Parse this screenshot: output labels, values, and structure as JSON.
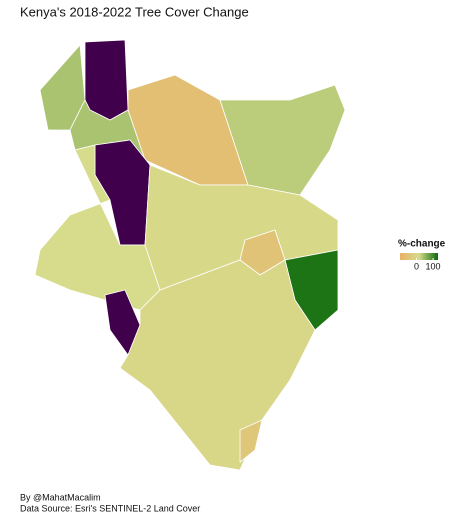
{
  "title": "Kenya's 2018-2022 Tree Cover Change",
  "legend": {
    "title": "%-change",
    "range": [
      -100,
      130
    ],
    "ticks": [
      0,
      100
    ],
    "colors": [
      "#e8b066",
      "#d6dc8c",
      "#0a6a0a"
    ],
    "na_color": "#40004b"
  },
  "regions": {
    "values": [
      40,
      null,
      -60,
      30,
      null,
      15,
      null,
      5,
      -50,
      120,
      0,
      -40
    ]
  },
  "credits": {
    "author": "By @MahatMacalim",
    "source": "Data Source: Esri's SENTINEL-2 Land Cover"
  }
}
